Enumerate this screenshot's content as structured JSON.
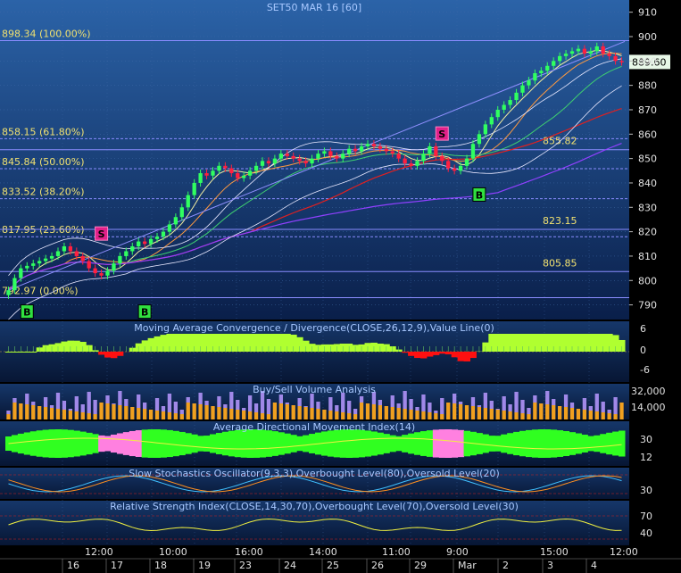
{
  "chart_data": [
    {
      "type": "candlestick",
      "title": "SET50 MAR 16   [60]",
      "ylim": [
        784,
        915
      ],
      "y_ticks": [
        "910",
        "900",
        "890",
        "880",
        "870",
        "860",
        "850",
        "840",
        "830",
        "820",
        "810",
        "800",
        "790"
      ],
      "last_price": "889.60",
      "fib_levels": [
        {
          "label": "898.34 (100.00%)",
          "value": 898.34
        },
        {
          "label": "858.15 (61.80%)",
          "value": 858.15
        },
        {
          "label": "845.84 (50.00%)",
          "value": 845.84
        },
        {
          "label": "833.52 (38.20%)",
          "value": 833.52
        },
        {
          "label": "817.95 (23.60%)",
          "value": 817.95
        },
        {
          "label": "792.97 (0.00%)",
          "value": 792.97
        }
      ],
      "level_labels": [
        {
          "label": "855.82",
          "value": 855.82
        },
        {
          "label": "823.15",
          "value": 823.15
        },
        {
          "label": "805.85",
          "value": 805.85
        }
      ],
      "signals": [
        {
          "label": "B",
          "type": "buy",
          "bar": 3,
          "value": 790
        },
        {
          "label": "B",
          "type": "buy",
          "bar": 22,
          "value": 790
        },
        {
          "label": "S",
          "type": "sell",
          "bar": 15,
          "value": 822
        },
        {
          "label": "S",
          "type": "sell",
          "bar": 70,
          "value": 863
        },
        {
          "label": "B",
          "type": "buy",
          "bar": 76,
          "value": 838
        }
      ],
      "close": [
        796,
        801,
        805,
        806,
        807,
        808,
        809,
        810,
        812,
        814,
        812,
        810,
        808,
        805,
        803,
        802,
        804,
        807,
        810,
        812,
        814,
        816,
        815,
        817,
        818,
        820,
        823,
        826,
        830,
        835,
        840,
        844,
        843,
        845,
        847,
        846,
        844,
        842,
        843,
        845,
        847,
        849,
        848,
        850,
        852,
        851,
        850,
        849,
        848,
        850,
        852,
        853,
        851,
        850,
        852,
        854,
        853,
        855,
        856,
        855,
        854,
        853,
        852,
        850,
        848,
        847,
        849,
        852,
        855,
        851,
        849,
        846,
        845,
        847,
        850,
        856,
        860,
        864,
        867,
        870,
        872,
        874,
        877,
        880,
        882,
        885,
        886,
        888,
        890,
        892,
        893,
        894,
        895,
        893,
        894,
        896,
        893,
        892,
        890,
        889.6
      ]
    },
    {
      "type": "histogram",
      "title": "Moving Average Convergence / Divergence(CLOSE,26,12,9),Value Line(0)",
      "y_ticks": [
        "6",
        "0",
        "-6"
      ]
    },
    {
      "type": "bar",
      "title": "Buy/Sell Volume Analysis",
      "y_ticks": [
        "32,000",
        "14,000"
      ]
    },
    {
      "type": "area",
      "title": "Average Directional Movement Index(14)",
      "y_ticks": [
        "30",
        "12"
      ]
    },
    {
      "type": "line",
      "title": "Slow Stochastics Oscillator(9,3,3),Overbought Level(80),Oversold Level(20)",
      "y_ticks": [
        "30"
      ]
    },
    {
      "type": "line",
      "title": "Relative Strength Index(CLOSE,14,30,70),Overbought Level(70),Oversold Level(30)",
      "y_ticks": [
        "70",
        "40"
      ]
    }
  ],
  "time_axis": {
    "times": [
      "12:00",
      "10:00",
      "16:00",
      "14:00",
      "11:00",
      "9:00",
      "15:00",
      "12:00"
    ],
    "dates": [
      "16",
      "17",
      "18",
      "19",
      "23",
      "24",
      "25",
      "26",
      "29",
      "Mar",
      "2",
      "3",
      "4"
    ]
  }
}
